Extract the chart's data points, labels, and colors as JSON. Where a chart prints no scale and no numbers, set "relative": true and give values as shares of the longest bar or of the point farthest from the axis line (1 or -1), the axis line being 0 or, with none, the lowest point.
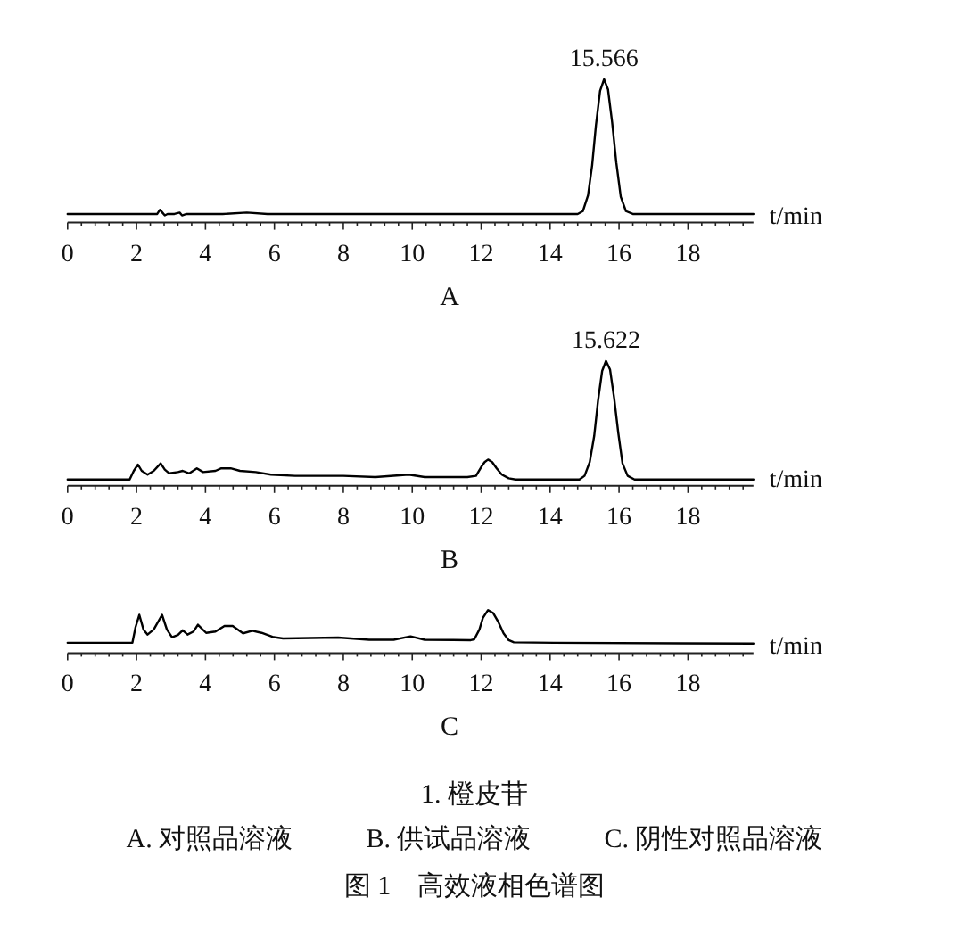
{
  "chart_data": [
    {
      "type": "line",
      "title": "A",
      "xlabel": "t/min",
      "relative": true,
      "xlim": [
        0,
        19.9
      ],
      "xticks": [
        0,
        {
          "value": 0.4,
          "label": null
        },
        {
          "value": 0.8,
          "label": null
        },
        {
          "value": 1.2,
          "label": null
        },
        {
          "value": 1.6,
          "label": null
        },
        2,
        {
          "value": 2.4,
          "label": null
        },
        {
          "value": 2.8,
          "label": null
        },
        {
          "value": 3.2,
          "label": null
        },
        {
          "value": 3.6,
          "label": null
        },
        4,
        {
          "value": 4.4,
          "label": null
        },
        {
          "value": 4.8,
          "label": null
        },
        {
          "value": 5.2,
          "label": null
        },
        {
          "value": 5.6,
          "label": null
        },
        6,
        {
          "value": 6.4,
          "label": null
        },
        {
          "value": 6.8,
          "label": null
        },
        {
          "value": 7.2,
          "label": null
        },
        {
          "value": 7.6,
          "label": null
        },
        8,
        {
          "value": 8.4,
          "label": null
        },
        {
          "value": 8.8,
          "label": null
        },
        {
          "value": 9.2,
          "label": null
        },
        {
          "value": 9.6,
          "label": null
        },
        10,
        {
          "value": 10.4,
          "label": null
        },
        {
          "value": 10.8,
          "label": null
        },
        {
          "value": 11.2,
          "label": null
        },
        {
          "value": 11.6,
          "label": null
        },
        12,
        {
          "value": 12.4,
          "label": null
        },
        {
          "value": 12.8,
          "label": null
        },
        {
          "value": 13.2,
          "label": null
        },
        {
          "value": 13.6,
          "label": null
        },
        14,
        {
          "value": 14.4,
          "label": null
        },
        {
          "value": 14.8,
          "label": null
        },
        {
          "value": 15.2,
          "label": null
        },
        {
          "value": 15.6,
          "label": null
        },
        16,
        {
          "value": 16.4,
          "label": null
        },
        {
          "value": 16.8,
          "label": null
        },
        {
          "value": 17.2,
          "label": null
        },
        {
          "value": 17.6,
          "label": null
        },
        18,
        {
          "value": 18.4,
          "label": null
        },
        {
          "value": 18.8,
          "label": null
        },
        {
          "value": 19.2,
          "label": null
        },
        {
          "value": 19.6,
          "label": null
        }
      ],
      "series": [
        {
          "color": "#000000",
          "x": [
            0,
            2.6,
            2.68,
            2.75,
            2.82,
            2.9,
            3.1,
            3.25,
            3.32,
            3.45,
            4.5,
            5.2,
            5.8,
            6.2,
            10,
            14.8,
            14.95,
            15.1,
            15.22,
            15.33,
            15.45,
            15.566,
            15.68,
            15.8,
            15.92,
            16.05,
            16.2,
            16.4,
            19.9
          ],
          "values": [
            0.06,
            0.06,
            0.09,
            0.07,
            0.05,
            0.06,
            0.06,
            0.07,
            0.05,
            0.06,
            0.06,
            0.07,
            0.06,
            0.06,
            0.06,
            0.06,
            0.08,
            0.19,
            0.4,
            0.68,
            0.92,
            1,
            0.93,
            0.7,
            0.42,
            0.18,
            0.08,
            0.06,
            0.06
          ]
        }
      ],
      "annotations": [
        {
          "text": "15.566",
          "x": 15.566,
          "y": 1
        }
      ]
    },
    {
      "type": "line",
      "title": "B",
      "xlabel": "t/min",
      "relative": true,
      "xlim": [
        0,
        19.9
      ],
      "xticks": [
        0,
        {
          "value": 0.4,
          "label": null
        },
        {
          "value": 0.8,
          "label": null
        },
        {
          "value": 1.2,
          "label": null
        },
        {
          "value": 1.6,
          "label": null
        },
        2,
        {
          "value": 2.4,
          "label": null
        },
        {
          "value": 2.8,
          "label": null
        },
        {
          "value": 3.2,
          "label": null
        },
        {
          "value": 3.6,
          "label": null
        },
        4,
        {
          "value": 4.4,
          "label": null
        },
        {
          "value": 4.8,
          "label": null
        },
        {
          "value": 5.2,
          "label": null
        },
        {
          "value": 5.6,
          "label": null
        },
        6,
        {
          "value": 6.4,
          "label": null
        },
        {
          "value": 6.8,
          "label": null
        },
        {
          "value": 7.2,
          "label": null
        },
        {
          "value": 7.6,
          "label": null
        },
        8,
        {
          "value": 8.4,
          "label": null
        },
        {
          "value": 8.8,
          "label": null
        },
        {
          "value": 9.2,
          "label": null
        },
        {
          "value": 9.6,
          "label": null
        },
        10,
        {
          "value": 10.4,
          "label": null
        },
        {
          "value": 10.8,
          "label": null
        },
        {
          "value": 11.2,
          "label": null
        },
        {
          "value": 11.6,
          "label": null
        },
        12,
        {
          "value": 12.4,
          "label": null
        },
        {
          "value": 12.8,
          "label": null
        },
        {
          "value": 13.2,
          "label": null
        },
        {
          "value": 13.6,
          "label": null
        },
        14,
        {
          "value": 14.4,
          "label": null
        },
        {
          "value": 14.8,
          "label": null
        },
        {
          "value": 15.2,
          "label": null
        },
        {
          "value": 15.6,
          "label": null
        },
        16,
        {
          "value": 16.4,
          "label": null
        },
        {
          "value": 16.8,
          "label": null
        },
        {
          "value": 17.2,
          "label": null
        },
        {
          "value": 17.6,
          "label": null
        },
        18,
        {
          "value": 18.4,
          "label": null
        },
        {
          "value": 18.8,
          "label": null
        },
        {
          "value": 19.2,
          "label": null
        },
        {
          "value": 19.6,
          "label": null
        }
      ],
      "series": [
        {
          "color": "#000000",
          "x": [
            0,
            1.8,
            1.92,
            2.04,
            2.15,
            2.32,
            2.5,
            2.7,
            2.82,
            2.95,
            3.2,
            3.34,
            3.53,
            3.75,
            3.93,
            4.29,
            4.46,
            4.73,
            5.0,
            5.46,
            5.9,
            6.6,
            8,
            8.93,
            9.9,
            10.36,
            11.6,
            11.85,
            12.0,
            12.1,
            12.2,
            12.32,
            12.45,
            12.6,
            12.8,
            13.0,
            14.85,
            15.0,
            15.15,
            15.28,
            15.39,
            15.51,
            15.622,
            15.74,
            15.86,
            15.98,
            16.1,
            16.25,
            16.45,
            19.9
          ],
          "values": [
            0.05,
            0.05,
            0.12,
            0.17,
            0.12,
            0.09,
            0.12,
            0.18,
            0.13,
            0.1,
            0.11,
            0.12,
            0.1,
            0.14,
            0.11,
            0.12,
            0.14,
            0.14,
            0.12,
            0.11,
            0.09,
            0.08,
            0.08,
            0.07,
            0.09,
            0.07,
            0.07,
            0.08,
            0.15,
            0.19,
            0.21,
            0.19,
            0.14,
            0.09,
            0.06,
            0.05,
            0.05,
            0.08,
            0.19,
            0.4,
            0.68,
            0.92,
            1,
            0.93,
            0.7,
            0.42,
            0.18,
            0.08,
            0.05,
            0.05
          ]
        }
      ],
      "annotations": [
        {
          "text": "15.622",
          "x": 15.622,
          "y": 1
        }
      ]
    },
    {
      "type": "line",
      "title": "C",
      "xlabel": "t/min",
      "relative": true,
      "xlim": [
        0,
        19.9
      ],
      "xticks": [
        0,
        {
          "value": 0.4,
          "label": null
        },
        {
          "value": 0.8,
          "label": null
        },
        {
          "value": 1.2,
          "label": null
        },
        {
          "value": 1.6,
          "label": null
        },
        2,
        {
          "value": 2.4,
          "label": null
        },
        {
          "value": 2.8,
          "label": null
        },
        {
          "value": 3.2,
          "label": null
        },
        {
          "value": 3.6,
          "label": null
        },
        4,
        {
          "value": 4.4,
          "label": null
        },
        {
          "value": 4.8,
          "label": null
        },
        {
          "value": 5.2,
          "label": null
        },
        {
          "value": 5.6,
          "label": null
        },
        6,
        {
          "value": 6.4,
          "label": null
        },
        {
          "value": 6.8,
          "label": null
        },
        {
          "value": 7.2,
          "label": null
        },
        {
          "value": 7.6,
          "label": null
        },
        8,
        {
          "value": 8.4,
          "label": null
        },
        {
          "value": 8.8,
          "label": null
        },
        {
          "value": 9.2,
          "label": null
        },
        {
          "value": 9.6,
          "label": null
        },
        10,
        {
          "value": 10.4,
          "label": null
        },
        {
          "value": 10.8,
          "label": null
        },
        {
          "value": 11.2,
          "label": null
        },
        {
          "value": 11.6,
          "label": null
        },
        12,
        {
          "value": 12.4,
          "label": null
        },
        {
          "value": 12.8,
          "label": null
        },
        {
          "value": 13.2,
          "label": null
        },
        {
          "value": 13.6,
          "label": null
        },
        14,
        {
          "value": 14.4,
          "label": null
        },
        {
          "value": 14.8,
          "label": null
        },
        {
          "value": 15.2,
          "label": null
        },
        {
          "value": 15.6,
          "label": null
        },
        16,
        {
          "value": 16.4,
          "label": null
        },
        {
          "value": 16.8,
          "label": null
        },
        {
          "value": 17.2,
          "label": null
        },
        {
          "value": 17.6,
          "label": null
        },
        18,
        {
          "value": 18.4,
          "label": null
        },
        {
          "value": 18.8,
          "label": null
        },
        {
          "value": 19.2,
          "label": null
        },
        {
          "value": 19.6,
          "label": null
        }
      ],
      "series": [
        {
          "color": "#000000",
          "x": [
            0,
            1.88,
            1.97,
            2.08,
            2.2,
            2.32,
            2.5,
            2.74,
            2.88,
            3.03,
            3.2,
            3.34,
            3.48,
            3.65,
            3.78,
            4.02,
            4.29,
            4.55,
            4.79,
            5.09,
            5.36,
            5.63,
            5.98,
            6.25,
            7.85,
            8.75,
            9.46,
            9.95,
            10.36,
            11.7,
            11.8,
            11.95,
            12.05,
            12.2,
            12.35,
            12.5,
            12.65,
            12.8,
            12.95,
            14.1,
            19.9
          ],
          "values": [
            0.24,
            0.24,
            0.6,
            0.89,
            0.55,
            0.43,
            0.55,
            0.89,
            0.55,
            0.37,
            0.42,
            0.53,
            0.43,
            0.5,
            0.66,
            0.47,
            0.5,
            0.63,
            0.63,
            0.46,
            0.52,
            0.47,
            0.37,
            0.34,
            0.36,
            0.31,
            0.31,
            0.39,
            0.31,
            0.3,
            0.32,
            0.55,
            0.82,
            1,
            0.93,
            0.72,
            0.46,
            0.3,
            0.25,
            0.24,
            0.22
          ]
        }
      ],
      "annotations": [
        "1. 橙皮苷",
        "A. 对照品溶液",
        "B. 供试品溶液",
        "C. 阴性对照品溶液",
        "图 1　高效液相色谱图"
      ]
    }
  ]
}
